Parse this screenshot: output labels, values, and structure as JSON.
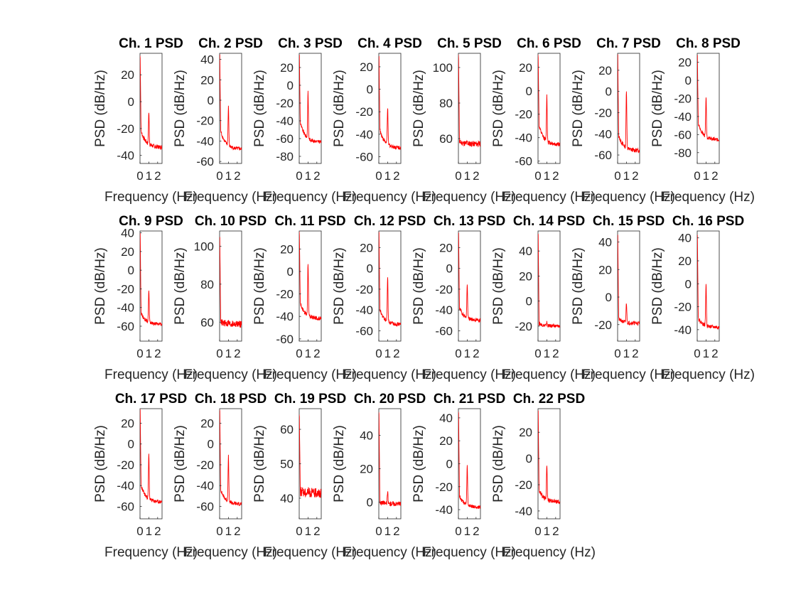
{
  "chart_data": {
    "type": "line",
    "layout": {
      "rows": 3,
      "columns": 8
    },
    "line_color": "#ff0000",
    "xlim": [
      0,
      2.5
    ],
    "x_ticks": [
      0,
      1,
      2
    ],
    "x_tick_labels": [
      "0",
      "1",
      "2"
    ],
    "peak_frequency_hz": 1,
    "xlabel": "Frequency (Hz)",
    "ylabel": "PSD (dB/Hz)",
    "grid": false,
    "legend": "none",
    "panels": [
      {
        "title": "Ch. 1 PSD",
        "ylim": [
          -46,
          36
        ],
        "yticks": [
          -40,
          -20,
          0,
          20
        ],
        "trace": {
          "start": 34,
          "bend": -22,
          "base": -34,
          "peak": -8,
          "noise": 1.6
        }
      },
      {
        "title": "Ch. 2 PSD",
        "ylim": [
          -62,
          46
        ],
        "yticks": [
          -60,
          -40,
          -20,
          0,
          20,
          40
        ],
        "trace": {
          "start": 44,
          "bend": -30,
          "base": -48,
          "peak": -6,
          "noise": 1.8
        }
      },
      {
        "title": "Ch. 3 PSD",
        "ylim": [
          -88,
          36
        ],
        "yticks": [
          -80,
          -60,
          -40,
          -20,
          0,
          20
        ],
        "trace": {
          "start": 34,
          "bend": -42,
          "base": -64,
          "peak": -8,
          "noise": 2.0
        }
      },
      {
        "title": "Ch. 4 PSD",
        "ylim": [
          -66,
          32
        ],
        "yticks": [
          -60,
          -40,
          -20,
          0,
          20
        ],
        "trace": {
          "start": 30,
          "bend": -36,
          "base": -52,
          "peak": -16,
          "noise": 1.8
        }
      },
      {
        "title": "Ch. 5 PSD",
        "ylim": [
          46,
          108
        ],
        "yticks": [
          60,
          80,
          100
        ],
        "flat": true,
        "trace": {
          "start": 106,
          "bend": 58,
          "base": 57,
          "peak": 58,
          "noise": 1.6
        }
      },
      {
        "title": "Ch. 6 PSD",
        "ylim": [
          -62,
          32
        ],
        "yticks": [
          -60,
          -40,
          -20,
          0,
          20
        ],
        "trace": {
          "start": 30,
          "bend": -30,
          "base": -46,
          "peak": -4,
          "noise": 1.8
        }
      },
      {
        "title": "Ch. 7 PSD",
        "ylim": [
          -68,
          36
        ],
        "yticks": [
          -60,
          -40,
          -20,
          0,
          20
        ],
        "trace": {
          "start": 34,
          "bend": -42,
          "base": -56,
          "peak": 2,
          "noise": 2.0
        }
      },
      {
        "title": "Ch. 8 PSD",
        "ylim": [
          -92,
          30
        ],
        "yticks": [
          -80,
          -60,
          -40,
          -20,
          0,
          20
        ],
        "trace": {
          "start": 28,
          "bend": -48,
          "base": -66,
          "peak": -18,
          "noise": 2.0
        }
      },
      {
        "title": "Ch. 9 PSD",
        "ylim": [
          -76,
          42
        ],
        "yticks": [
          -60,
          -40,
          -20,
          0,
          20,
          40
        ],
        "trace": {
          "start": 40,
          "bend": -46,
          "base": -58,
          "peak": -22,
          "noise": 1.8
        }
      },
      {
        "title": "Ch. 10 PSD",
        "ylim": [
          50,
          108
        ],
        "yticks": [
          60,
          80,
          100
        ],
        "flat": true,
        "trace": {
          "start": 106,
          "bend": 60,
          "base": 59,
          "peak": 60,
          "noise": 1.8
        }
      },
      {
        "title": "Ch. 11 PSD",
        "ylim": [
          -62,
          36
        ],
        "yticks": [
          -60,
          -40,
          -20,
          0,
          20
        ],
        "trace": {
          "start": 34,
          "bend": -28,
          "base": -42,
          "peak": 8,
          "noise": 1.8
        }
      },
      {
        "title": "Ch. 12 PSD",
        "ylim": [
          -70,
          36
        ],
        "yticks": [
          -60,
          -40,
          -20,
          0,
          20
        ],
        "trace": {
          "start": 34,
          "bend": -40,
          "base": -54,
          "peak": -8,
          "noise": 1.8
        }
      },
      {
        "title": "Ch. 13 PSD",
        "ylim": [
          -70,
          36
        ],
        "yticks": [
          -60,
          -40,
          -20,
          0,
          20
        ],
        "trace": {
          "start": 34,
          "bend": -38,
          "base": -50,
          "peak": -16,
          "noise": 1.8
        }
      },
      {
        "title": "Ch. 14 PSD",
        "ylim": [
          -32,
          56
        ],
        "yticks": [
          -20,
          0,
          20,
          40
        ],
        "flat": true,
        "trace": {
          "start": 54,
          "bend": -18,
          "base": -20,
          "peak": -17,
          "noise": 1.4
        }
      },
      {
        "title": "Ch. 15 PSD",
        "ylim": [
          -32,
          48
        ],
        "yticks": [
          -20,
          0,
          20,
          40
        ],
        "trace": {
          "start": 46,
          "bend": -16,
          "base": -19,
          "peak": -4,
          "noise": 1.4
        }
      },
      {
        "title": "Ch. 16 PSD",
        "ylim": [
          -50,
          46
        ],
        "yticks": [
          -40,
          -20,
          0,
          20,
          40
        ],
        "trace": {
          "start": 44,
          "bend": -30,
          "base": -38,
          "peak": 0,
          "noise": 1.6
        }
      },
      {
        "title": "Ch. 17 PSD",
        "ylim": [
          -72,
          34
        ],
        "yticks": [
          -60,
          -40,
          -20,
          0,
          20
        ],
        "trace": {
          "start": 32,
          "bend": -40,
          "base": -56,
          "peak": -10,
          "noise": 1.8
        }
      },
      {
        "title": "Ch. 18 PSD",
        "ylim": [
          -72,
          34
        ],
        "yticks": [
          -60,
          -40,
          -20,
          0,
          20
        ],
        "trace": {
          "start": 32,
          "bend": -44,
          "base": -58,
          "peak": -12,
          "noise": 1.8
        }
      },
      {
        "title": "Ch. 19 PSD",
        "ylim": [
          34,
          66
        ],
        "yticks": [
          40,
          50,
          60
        ],
        "flat": true,
        "trace": {
          "start": 64,
          "bend": 42,
          "base": 41.5,
          "peak": 42,
          "noise": 1.4
        }
      },
      {
        "title": "Ch. 20 PSD",
        "ylim": [
          -10,
          56
        ],
        "yticks": [
          0,
          20,
          40
        ],
        "flat": true,
        "trace": {
          "start": 54,
          "bend": 0,
          "base": -1,
          "peak": 6,
          "noise": 1.4
        }
      },
      {
        "title": "Ch. 21 PSD",
        "ylim": [
          -48,
          48
        ],
        "yticks": [
          -40,
          -20,
          0,
          20,
          40
        ],
        "trace": {
          "start": 46,
          "bend": -28,
          "base": -38,
          "peak": -2,
          "noise": 1.6
        }
      },
      {
        "title": "Ch. 22 PSD",
        "ylim": [
          -46,
          38
        ],
        "yticks": [
          -40,
          -20,
          0,
          20
        ],
        "trace": {
          "start": 36,
          "bend": -24,
          "base": -33,
          "peak": -4,
          "noise": 1.6
        }
      }
    ]
  }
}
